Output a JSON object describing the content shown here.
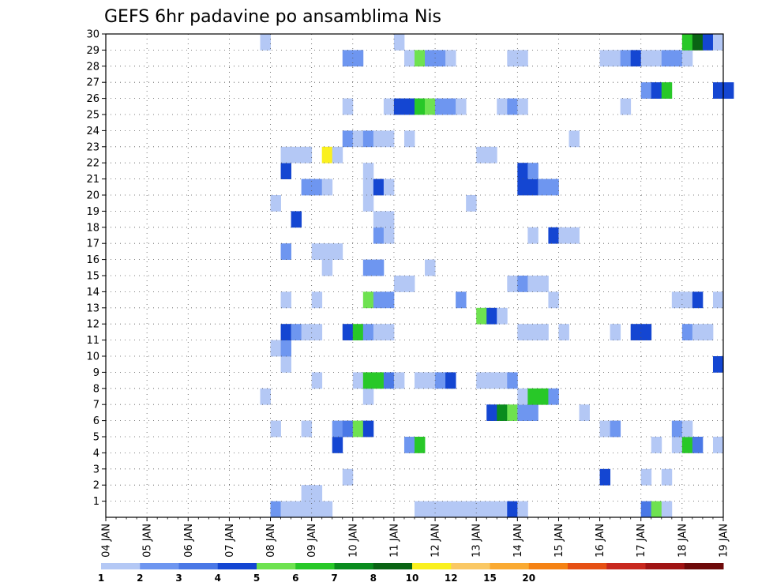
{
  "chart_data": {
    "type": "heatmap",
    "title": "GEFS 6hr padavine po ansamblima Nis",
    "x_ticks": [
      "04 JAN",
      "05 JAN",
      "06 JAN",
      "07 JAN",
      "08 JAN",
      "09 JAN",
      "10 JAN",
      "11 JAN",
      "12 JAN",
      "13 JAN",
      "14 JAN",
      "15 JAN",
      "16 JAN",
      "17 JAN",
      "18 JAN",
      "19 JAN"
    ],
    "y_ticks": [
      "1",
      "2",
      "3",
      "4",
      "5",
      "6",
      "7",
      "8",
      "9",
      "10",
      "11",
      "12",
      "13",
      "14",
      "15",
      "16",
      "17",
      "18",
      "19",
      "20",
      "21",
      "22",
      "23",
      "24",
      "25",
      "26",
      "27",
      "28",
      "29",
      "30"
    ],
    "xlim": [
      "04 JAN",
      "19 JAN"
    ],
    "ylim": [
      0,
      30
    ],
    "time_step_hours": 6,
    "grid": true,
    "colorbar": {
      "placement": "bottom",
      "labels": [
        "1",
        "2",
        "3",
        "4",
        "5",
        "6",
        "7",
        "8",
        "10",
        "12",
        "15",
        "20"
      ],
      "colors": [
        "#b4c8f5",
        "#6e96f0",
        "#4a78e6",
        "#1446d2",
        "#6ee250",
        "#28c828",
        "#0a8c1e",
        "#0a6414",
        "#faf01e",
        "#fac864",
        "#faaa32",
        "#f58214",
        "#e65014",
        "#c8281e",
        "#a01414",
        "#6e0a0a"
      ]
    },
    "cells": [
      [
        0,
        8.0,
        2
      ],
      [
        0,
        8.25,
        1
      ],
      [
        0,
        8.5,
        1
      ],
      [
        0,
        8.75,
        1
      ],
      [
        0,
        9.0,
        1
      ],
      [
        0,
        9.25,
        1
      ],
      [
        0,
        11.5,
        1
      ],
      [
        0,
        11.75,
        1
      ],
      [
        0,
        12.0,
        1
      ],
      [
        0,
        12.25,
        1
      ],
      [
        0,
        12.5,
        1
      ],
      [
        0,
        12.75,
        1
      ],
      [
        0,
        13.0,
        1
      ],
      [
        0,
        13.25,
        1
      ],
      [
        0,
        13.5,
        1
      ],
      [
        0,
        13.75,
        4
      ],
      [
        0,
        14.0,
        1
      ],
      [
        0,
        17.0,
        3
      ],
      [
        0,
        17.25,
        5
      ],
      [
        0,
        17.5,
        1
      ],
      [
        1,
        8.75,
        1
      ],
      [
        1,
        9.0,
        1
      ],
      [
        2,
        9.75,
        1
      ],
      [
        2,
        16.0,
        4
      ],
      [
        2,
        17.0,
        1
      ],
      [
        2,
        17.5,
        1
      ],
      [
        4,
        9.5,
        4
      ],
      [
        4,
        11.25,
        2
      ],
      [
        4,
        11.5,
        6
      ],
      [
        4,
        17.25,
        1
      ],
      [
        4,
        17.75,
        1
      ],
      [
        4,
        18.0,
        6
      ],
      [
        4,
        18.25,
        3
      ],
      [
        4,
        18.75,
        1
      ],
      [
        5,
        8.0,
        1
      ],
      [
        5,
        8.75,
        1
      ],
      [
        5,
        9.5,
        2
      ],
      [
        5,
        9.75,
        3
      ],
      [
        5,
        10.0,
        5
      ],
      [
        5,
        10.25,
        4
      ],
      [
        5,
        16.0,
        1
      ],
      [
        5,
        16.25,
        2
      ],
      [
        5,
        17.75,
        2
      ],
      [
        5,
        18.0,
        1
      ],
      [
        6,
        13.25,
        4
      ],
      [
        6,
        13.5,
        7
      ],
      [
        6,
        13.75,
        5
      ],
      [
        6,
        14.0,
        2
      ],
      [
        6,
        14.25,
        2
      ],
      [
        6,
        15.5,
        1
      ],
      [
        7,
        7.75,
        1
      ],
      [
        7,
        10.25,
        1
      ],
      [
        7,
        14.0,
        1
      ],
      [
        7,
        14.25,
        6
      ],
      [
        7,
        14.5,
        6
      ],
      [
        7,
        14.75,
        2
      ],
      [
        8,
        9.0,
        1
      ],
      [
        8,
        10.0,
        1
      ],
      [
        8,
        10.25,
        6
      ],
      [
        8,
        10.5,
        6
      ],
      [
        8,
        10.75,
        3
      ],
      [
        8,
        11.0,
        1
      ],
      [
        8,
        11.5,
        1
      ],
      [
        8,
        11.75,
        1
      ],
      [
        8,
        12.0,
        2
      ],
      [
        8,
        12.25,
        4
      ],
      [
        8,
        13.0,
        1
      ],
      [
        8,
        13.25,
        1
      ],
      [
        8,
        13.5,
        1
      ],
      [
        8,
        13.75,
        2
      ],
      [
        9,
        8.25,
        1
      ],
      [
        9,
        18.75,
        4
      ],
      [
        10,
        8.0,
        1
      ],
      [
        10,
        8.25,
        2
      ],
      [
        11,
        8.25,
        4
      ],
      [
        11,
        8.5,
        2
      ],
      [
        11,
        8.75,
        1
      ],
      [
        11,
        9.0,
        1
      ],
      [
        11,
        9.75,
        4
      ],
      [
        11,
        10.0,
        6
      ],
      [
        11,
        10.25,
        2
      ],
      [
        11,
        10.5,
        1
      ],
      [
        11,
        10.75,
        1
      ],
      [
        11,
        14.0,
        1
      ],
      [
        11,
        14.25,
        1
      ],
      [
        11,
        14.5,
        1
      ],
      [
        11,
        15.0,
        1
      ],
      [
        11,
        16.25,
        1
      ],
      [
        11,
        16.75,
        4
      ],
      [
        11,
        17.0,
        4
      ],
      [
        11,
        18.0,
        2
      ],
      [
        11,
        18.25,
        1
      ],
      [
        11,
        18.5,
        1
      ],
      [
        12,
        13.0,
        5
      ],
      [
        12,
        13.25,
        4
      ],
      [
        12,
        13.5,
        1
      ],
      [
        13,
        8.25,
        1
      ],
      [
        13,
        9.0,
        1
      ],
      [
        13,
        10.25,
        5
      ],
      [
        13,
        10.5,
        2
      ],
      [
        13,
        10.75,
        2
      ],
      [
        13,
        12.5,
        2
      ],
      [
        13,
        14.75,
        1
      ],
      [
        13,
        17.75,
        1
      ],
      [
        13,
        18.0,
        1
      ],
      [
        13,
        18.25,
        4
      ],
      [
        13,
        18.75,
        1
      ],
      [
        14,
        11.0,
        1
      ],
      [
        14,
        11.25,
        1
      ],
      [
        14,
        13.75,
        1
      ],
      [
        14,
        14.0,
        2
      ],
      [
        14,
        14.25,
        1
      ],
      [
        14,
        14.5,
        1
      ],
      [
        15,
        9.25,
        1
      ],
      [
        15,
        10.25,
        2
      ],
      [
        15,
        10.5,
        2
      ],
      [
        15,
        11.75,
        1
      ],
      [
        16,
        8.25,
        2
      ],
      [
        16,
        9.0,
        1
      ],
      [
        16,
        9.25,
        1
      ],
      [
        16,
        9.5,
        1
      ],
      [
        17,
        10.5,
        2
      ],
      [
        17,
        10.75,
        1
      ],
      [
        17,
        14.25,
        1
      ],
      [
        17,
        14.75,
        4
      ],
      [
        17,
        15.0,
        1
      ],
      [
        17,
        15.25,
        1
      ],
      [
        18,
        10.5,
        1
      ],
      [
        18,
        10.75,
        1
      ],
      [
        18,
        8.5,
        4
      ],
      [
        19,
        8.0,
        1
      ],
      [
        19,
        10.25,
        1
      ],
      [
        19,
        12.75,
        1
      ],
      [
        20,
        8.75,
        2
      ],
      [
        20,
        9.0,
        2
      ],
      [
        20,
        9.25,
        1
      ],
      [
        20,
        10.25,
        1
      ],
      [
        20,
        10.5,
        4
      ],
      [
        20,
        10.75,
        1
      ],
      [
        20,
        14.0,
        4
      ],
      [
        20,
        14.25,
        4
      ],
      [
        20,
        14.5,
        2
      ],
      [
        20,
        14.75,
        2
      ],
      [
        21,
        8.25,
        4
      ],
      [
        21,
        10.25,
        1
      ],
      [
        21,
        14.0,
        4
      ],
      [
        21,
        14.25,
        2
      ],
      [
        22,
        8.25,
        1
      ],
      [
        22,
        8.5,
        1
      ],
      [
        22,
        8.75,
        1
      ],
      [
        22,
        9.25,
        9
      ],
      [
        22,
        9.5,
        1
      ],
      [
        22,
        13.0,
        1
      ],
      [
        22,
        13.25,
        1
      ],
      [
        23,
        9.75,
        2
      ],
      [
        23,
        10.0,
        1
      ],
      [
        23,
        10.25,
        2
      ],
      [
        23,
        10.5,
        1
      ],
      [
        23,
        10.75,
        1
      ],
      [
        23,
        11.25,
        1
      ],
      [
        23,
        15.25,
        1
      ],
      [
        25,
        9.75,
        1
      ],
      [
        25,
        10.75,
        1
      ],
      [
        25,
        11.0,
        4
      ],
      [
        25,
        11.25,
        4
      ],
      [
        25,
        11.5,
        6
      ],
      [
        25,
        11.75,
        5
      ],
      [
        25,
        12.0,
        2
      ],
      [
        25,
        12.25,
        2
      ],
      [
        25,
        12.5,
        1
      ],
      [
        25,
        13.5,
        1
      ],
      [
        25,
        13.75,
        2
      ],
      [
        25,
        14.0,
        1
      ],
      [
        25,
        16.5,
        1
      ],
      [
        26,
        17.0,
        2
      ],
      [
        26,
        17.25,
        4
      ],
      [
        26,
        17.5,
        6
      ],
      [
        26,
        18.75,
        4
      ],
      [
        26,
        19.0,
        4
      ],
      [
        28,
        9.75,
        2
      ],
      [
        28,
        10.0,
        2
      ],
      [
        28,
        11.25,
        1
      ],
      [
        28,
        11.5,
        5
      ],
      [
        28,
        11.75,
        2
      ],
      [
        28,
        12.0,
        2
      ],
      [
        28,
        12.25,
        1
      ],
      [
        28,
        13.75,
        1
      ],
      [
        28,
        14.0,
        1
      ],
      [
        28,
        16.0,
        1
      ],
      [
        28,
        16.25,
        1
      ],
      [
        28,
        16.5,
        2
      ],
      [
        28,
        16.75,
        4
      ],
      [
        28,
        17.0,
        1
      ],
      [
        28,
        17.25,
        1
      ],
      [
        28,
        17.5,
        2
      ],
      [
        28,
        17.75,
        2
      ],
      [
        28,
        18.0,
        1
      ],
      [
        29,
        7.75,
        1
      ],
      [
        29,
        11.0,
        1
      ],
      [
        29,
        18.0,
        6
      ],
      [
        29,
        18.25,
        8
      ],
      [
        29,
        18.5,
        4
      ],
      [
        29,
        18.75,
        1
      ]
    ]
  }
}
